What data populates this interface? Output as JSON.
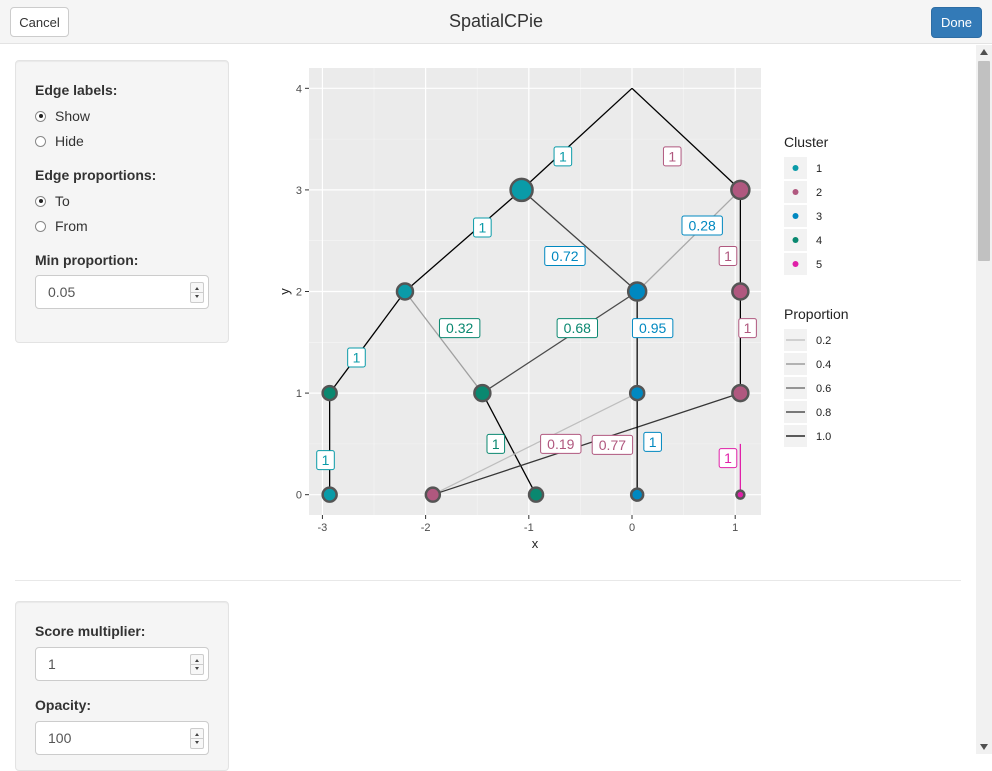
{
  "header": {
    "title": "SpatialCPie",
    "cancel_label": "Cancel",
    "done_label": "Done"
  },
  "sidebar1": {
    "edge_labels": {
      "label": "Edge labels:",
      "options": [
        "Show",
        "Hide"
      ],
      "selected": "Show"
    },
    "edge_proportions": {
      "label": "Edge proportions:",
      "options": [
        "To",
        "From"
      ],
      "selected": "To"
    },
    "min_proportion": {
      "label": "Min proportion:",
      "value": "0.05"
    }
  },
  "sidebar2": {
    "score_multiplier": {
      "label": "Score multiplier:",
      "value": "1"
    },
    "opacity": {
      "label": "Opacity:",
      "value": "100"
    }
  },
  "chart_data": {
    "type": "scatter",
    "xlabel": "x",
    "ylabel": "y",
    "xlim": [
      -3.13,
      1.25
    ],
    "ylim": [
      -0.2,
      4.2
    ],
    "xticks": [
      -3,
      -2,
      -1,
      0,
      1
    ],
    "yticks": [
      0,
      1,
      2,
      3,
      4
    ],
    "grid": true,
    "colors": {
      "1": "#0a9ba8",
      "2": "#b0587f",
      "3": "#0088c0",
      "4": "#0a8870",
      "5": "#e020a8"
    },
    "nodes": [
      {
        "x": 0.0,
        "y": 4.0,
        "cluster": null,
        "size": 0
      },
      {
        "x": -1.07,
        "y": 3.0,
        "cluster": "1",
        "size": 11
      },
      {
        "x": 1.05,
        "y": 3.0,
        "cluster": "2",
        "size": 9
      },
      {
        "x": -2.2,
        "y": 2.0,
        "cluster": "1",
        "size": 8
      },
      {
        "x": 0.05,
        "y": 2.0,
        "cluster": "3",
        "size": 9
      },
      {
        "x": 1.05,
        "y": 2.0,
        "cluster": "2",
        "size": 8
      },
      {
        "x": -2.93,
        "y": 1.0,
        "cluster": "4",
        "size": 7
      },
      {
        "x": -1.45,
        "y": 1.0,
        "cluster": "4",
        "size": 8
      },
      {
        "x": 0.05,
        "y": 1.0,
        "cluster": "3",
        "size": 7
      },
      {
        "x": 1.05,
        "y": 1.0,
        "cluster": "2",
        "size": 8
      },
      {
        "x": -2.93,
        "y": 0.0,
        "cluster": "1",
        "size": 7
      },
      {
        "x": -1.93,
        "y": 0.0,
        "cluster": "2",
        "size": 7
      },
      {
        "x": -0.93,
        "y": 0.0,
        "cluster": "4",
        "size": 7
      },
      {
        "x": 0.05,
        "y": 0.0,
        "cluster": "3",
        "size": 6
      },
      {
        "x": 1.05,
        "y": 0.0,
        "cluster": "5",
        "size": 4
      }
    ],
    "edges": [
      {
        "from": [
          0.0,
          4.0
        ],
        "to": [
          -1.07,
          3.0
        ],
        "proportion": 1.0
      },
      {
        "from": [
          0.0,
          4.0
        ],
        "to": [
          1.05,
          3.0
        ],
        "proportion": 1.0
      },
      {
        "from": [
          -1.07,
          3.0
        ],
        "to": [
          -2.2,
          2.0
        ],
        "proportion": 1.0
      },
      {
        "from": [
          -1.07,
          3.0
        ],
        "to": [
          0.05,
          2.0
        ],
        "proportion": 0.72
      },
      {
        "from": [
          1.05,
          3.0
        ],
        "to": [
          0.05,
          2.0
        ],
        "proportion": 0.28
      },
      {
        "from": [
          1.05,
          3.0
        ],
        "to": [
          1.05,
          2.0
        ],
        "proportion": 1.0
      },
      {
        "from": [
          -2.2,
          2.0
        ],
        "to": [
          -2.93,
          1.0
        ],
        "proportion": 1.0
      },
      {
        "from": [
          -2.2,
          2.0
        ],
        "to": [
          -1.45,
          1.0
        ],
        "proportion": 0.32
      },
      {
        "from": [
          0.05,
          2.0
        ],
        "to": [
          -1.45,
          1.0
        ],
        "proportion": 0.68
      },
      {
        "from": [
          0.05,
          2.0
        ],
        "to": [
          0.05,
          1.0
        ],
        "proportion": 0.95
      },
      {
        "from": [
          1.05,
          2.0
        ],
        "to": [
          1.05,
          1.0
        ],
        "proportion": 1.0
      },
      {
        "from": [
          -2.93,
          1.0
        ],
        "to": [
          -2.93,
          0.0
        ],
        "proportion": 1.0
      },
      {
        "from": [
          -1.45,
          1.0
        ],
        "to": [
          -0.93,
          0.0
        ],
        "proportion": 1.0
      },
      {
        "from": [
          0.05,
          1.0
        ],
        "to": [
          -1.93,
          0.0
        ],
        "proportion": 0.19
      },
      {
        "from": [
          1.05,
          1.0
        ],
        "to": [
          -1.93,
          0.0
        ],
        "proportion": 0.77
      },
      {
        "from": [
          0.05,
          1.0
        ],
        "to": [
          0.05,
          0.0
        ],
        "proportion": 1.0
      },
      {
        "from": [
          1.05,
          0.5
        ],
        "to": [
          1.05,
          0.0
        ],
        "proportion": 1.0,
        "cluster": "5"
      }
    ],
    "edge_labels": [
      {
        "text": "1",
        "x": -0.67,
        "y": 3.33,
        "cluster": "1"
      },
      {
        "text": "1",
        "x": 0.39,
        "y": 3.33,
        "cluster": "2"
      },
      {
        "text": "1",
        "x": -1.45,
        "y": 2.63,
        "cluster": "1"
      },
      {
        "text": "0.28",
        "x": 0.68,
        "y": 2.65,
        "cluster": "3"
      },
      {
        "text": "0.72",
        "x": -0.65,
        "y": 2.35,
        "cluster": "3"
      },
      {
        "text": "1",
        "x": 0.93,
        "y": 2.35,
        "cluster": "2"
      },
      {
        "text": "0.32",
        "x": -1.67,
        "y": 1.64,
        "cluster": "4"
      },
      {
        "text": "0.68",
        "x": -0.53,
        "y": 1.64,
        "cluster": "4"
      },
      {
        "text": "0.95",
        "x": 0.2,
        "y": 1.64,
        "cluster": "3"
      },
      {
        "text": "1",
        "x": 1.12,
        "y": 1.64,
        "cluster": "2"
      },
      {
        "text": "1",
        "x": -2.67,
        "y": 1.35,
        "cluster": "1"
      },
      {
        "text": "1",
        "x": -1.32,
        "y": 0.5,
        "cluster": "4"
      },
      {
        "text": "0.19",
        "x": -0.69,
        "y": 0.5,
        "cluster": "2"
      },
      {
        "text": "0.77",
        "x": -0.19,
        "y": 0.49,
        "cluster": "2"
      },
      {
        "text": "1",
        "x": 0.2,
        "y": 0.52,
        "cluster": "3"
      },
      {
        "text": "1",
        "x": -2.97,
        "y": 0.34,
        "cluster": "1"
      },
      {
        "text": "1",
        "x": 0.93,
        "y": 0.36,
        "cluster": "5"
      }
    ],
    "legend_cluster": {
      "title": "Cluster",
      "entries": [
        "1",
        "2",
        "3",
        "4",
        "5"
      ]
    },
    "legend_proportion": {
      "title": "Proportion",
      "entries": [
        "0.2",
        "0.4",
        "0.6",
        "0.8",
        "1.0"
      ]
    },
    "legend_placement": "right"
  }
}
